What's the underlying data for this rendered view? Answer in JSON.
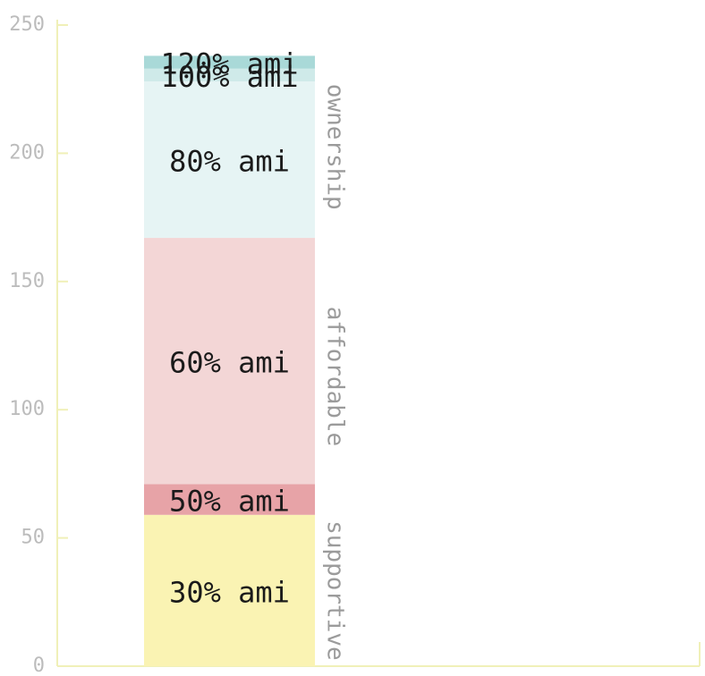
{
  "chart_data": {
    "type": "bar",
    "stacked": true,
    "categories": [
      ""
    ],
    "ylim": [
      0,
      250
    ],
    "y_ticks": [
      0,
      50,
      100,
      150,
      200,
      250
    ],
    "grid": false,
    "title": "",
    "xlabel": "",
    "ylabel": "",
    "axis_color": "#f0f0b8",
    "series": [
      {
        "name": "30% ami",
        "values": [
          59
        ],
        "color": "#faf3b3"
      },
      {
        "name": "50% ami",
        "values": [
          12
        ],
        "color": "#e7a3a7"
      },
      {
        "name": "60% ami",
        "values": [
          96
        ],
        "color": "#f3d6d6"
      },
      {
        "name": "80% ami",
        "values": [
          61
        ],
        "color": "#e6f4f4"
      },
      {
        "name": "100% ami",
        "values": [
          5
        ],
        "color": "#cfeae9"
      },
      {
        "name": "120% ami",
        "values": [
          5
        ],
        "color": "#a9d9d8"
      }
    ],
    "groups": [
      {
        "label": "supportive",
        "from": 0,
        "to": 59
      },
      {
        "label": "affordable",
        "from": 59,
        "to": 167
      },
      {
        "label": "ownership",
        "from": 167,
        "to": 238
      }
    ]
  }
}
